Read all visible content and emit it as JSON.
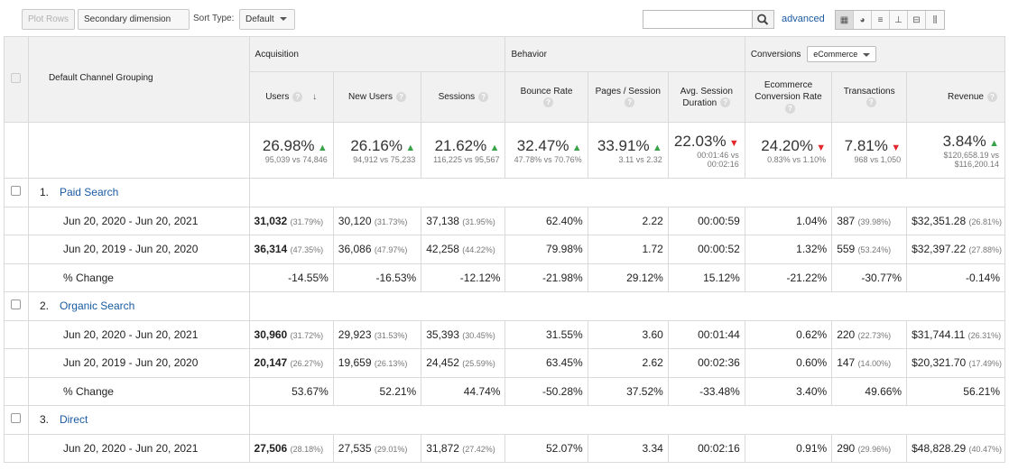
{
  "toolbar": {
    "plot_rows": "Plot Rows",
    "secondary_dimension": "Secondary dimension",
    "sort_type_label": "Sort Type:",
    "sort_type_value": "Default",
    "search_value": "",
    "advanced": "advanced"
  },
  "table": {
    "dimension_header": "Default Channel Grouping",
    "groups": {
      "acquisition": "Acquisition",
      "behavior": "Behavior",
      "conversions": "Conversions",
      "conversions_select": "eCommerce"
    },
    "columns": {
      "users": "Users",
      "new_users": "New Users",
      "sessions": "Sessions",
      "bounce_rate": "Bounce Rate",
      "pages_session": "Pages / Session",
      "avg_session_duration": "Avg. Session Duration",
      "ecom_conv_rate": "Ecommerce Conversion Rate",
      "transactions": "Transactions",
      "revenue": "Revenue"
    },
    "summary": {
      "users": {
        "pct": "26.98%",
        "cmp": "95,039 vs 74,846",
        "trend": "up"
      },
      "new_users": {
        "pct": "26.16%",
        "cmp": "94,912 vs 75,233",
        "trend": "up"
      },
      "sessions": {
        "pct": "21.62%",
        "cmp": "116,225 vs 95,567",
        "trend": "up"
      },
      "bounce_rate": {
        "pct": "32.47%",
        "cmp": "47.78% vs 70.76%",
        "trend": "up"
      },
      "pages_session": {
        "pct": "33.91%",
        "cmp": "3.11 vs 2.32",
        "trend": "up"
      },
      "avg_session_duration": {
        "pct": "22.03%",
        "cmp": "00:01:46 vs 00:02:16",
        "trend": "down"
      },
      "ecom_conv_rate": {
        "pct": "24.20%",
        "cmp": "0.83% vs 1.10%",
        "trend": "down"
      },
      "transactions": {
        "pct": "7.81%",
        "cmp": "968 vs 1,050",
        "trend": "down"
      },
      "revenue": {
        "pct": "3.84%",
        "cmp": "$120,658.19 vs $116,200.14",
        "trend": "up"
      }
    },
    "channels": [
      {
        "index": "1.",
        "name": "Paid Search",
        "rows": [
          {
            "label": "Jun 20, 2020 - Jun 20, 2021",
            "users": "31,032",
            "users_pct": "(31.79%)",
            "new_users": "30,120",
            "new_users_pct": "(31.73%)",
            "sessions": "37,138",
            "sessions_pct": "(31.95%)",
            "bounce_rate": "62.40%",
            "pages_session": "2.22",
            "avg_duration": "00:00:59",
            "conv_rate": "1.04%",
            "transactions": "387",
            "transactions_pct": "(39.98%)",
            "revenue": "$32,351.28",
            "revenue_pct": "(26.81%)"
          },
          {
            "label": "Jun 20, 2019 - Jun 20, 2020",
            "users": "36,314",
            "users_pct": "(47.35%)",
            "new_users": "36,086",
            "new_users_pct": "(47.97%)",
            "sessions": "42,258",
            "sessions_pct": "(44.22%)",
            "bounce_rate": "79.98%",
            "pages_session": "1.72",
            "avg_duration": "00:00:52",
            "conv_rate": "1.32%",
            "transactions": "559",
            "transactions_pct": "(53.24%)",
            "revenue": "$32,397.22",
            "revenue_pct": "(27.88%)"
          }
        ],
        "change": {
          "label": "% Change",
          "users": "-14.55%",
          "new_users": "-16.53%",
          "sessions": "-12.12%",
          "bounce_rate": "-21.98%",
          "pages_session": "29.12%",
          "avg_duration": "15.12%",
          "conv_rate": "-21.22%",
          "transactions": "-30.77%",
          "revenue": "-0.14%"
        }
      },
      {
        "index": "2.",
        "name": "Organic Search",
        "rows": [
          {
            "label": "Jun 20, 2020 - Jun 20, 2021",
            "users": "30,960",
            "users_pct": "(31.72%)",
            "new_users": "29,923",
            "new_users_pct": "(31.53%)",
            "sessions": "35,393",
            "sessions_pct": "(30.45%)",
            "bounce_rate": "31.55%",
            "pages_session": "3.60",
            "avg_duration": "00:01:44",
            "conv_rate": "0.62%",
            "transactions": "220",
            "transactions_pct": "(22.73%)",
            "revenue": "$31,744.11",
            "revenue_pct": "(26.31%)"
          },
          {
            "label": "Jun 20, 2019 - Jun 20, 2020",
            "users": "20,147",
            "users_pct": "(26.27%)",
            "new_users": "19,659",
            "new_users_pct": "(26.13%)",
            "sessions": "24,452",
            "sessions_pct": "(25.59%)",
            "bounce_rate": "63.45%",
            "pages_session": "2.62",
            "avg_duration": "00:02:36",
            "conv_rate": "0.60%",
            "transactions": "147",
            "transactions_pct": "(14.00%)",
            "revenue": "$20,321.70",
            "revenue_pct": "(17.49%)"
          }
        ],
        "change": {
          "label": "% Change",
          "users": "53.67%",
          "new_users": "52.21%",
          "sessions": "44.74%",
          "bounce_rate": "-50.28%",
          "pages_session": "37.52%",
          "avg_duration": "-33.48%",
          "conv_rate": "3.40%",
          "transactions": "49.66%",
          "revenue": "56.21%"
        }
      },
      {
        "index": "3.",
        "name": "Direct",
        "rows": [
          {
            "label": "Jun 20, 2020 - Jun 20, 2021",
            "users": "27,506",
            "users_pct": "(28.18%)",
            "new_users": "27,535",
            "new_users_pct": "(29.01%)",
            "sessions": "31,872",
            "sessions_pct": "(27.42%)",
            "bounce_rate": "52.07%",
            "pages_session": "3.34",
            "avg_duration": "00:02:16",
            "conv_rate": "0.91%",
            "transactions": "290",
            "transactions_pct": "(29.96%)",
            "revenue": "$48,828.29",
            "revenue_pct": "(40.47%)"
          }
        ]
      }
    ]
  },
  "colors": {
    "up": "#3aa34a",
    "down": "#e3282e",
    "link": "#1a5aa0"
  }
}
